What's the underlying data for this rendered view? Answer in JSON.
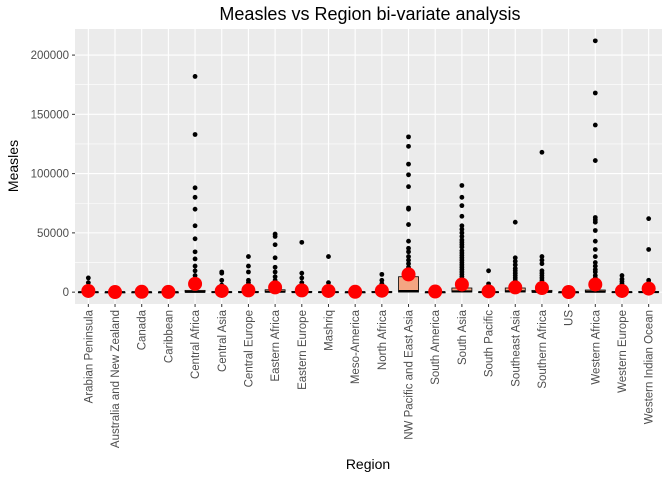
{
  "chart_data": {
    "type": "boxplot",
    "title": "Measles vs Region bi-variate analysis",
    "xlabel": "Region",
    "ylabel": "Measles",
    "ylim": [
      -10000,
      222000
    ],
    "y_ticks": [
      0,
      50000,
      100000,
      150000,
      200000
    ],
    "y_tick_labels": [
      "0",
      "50000",
      "100000",
      "150000",
      "200000"
    ],
    "grid": true,
    "legend": "none",
    "colors": {
      "panel_background": "#EBEBEB",
      "grid_line": "#FFFFFF",
      "box_fill": "#F4A582",
      "box_stroke": "#000000",
      "outlier": "#000000",
      "mean_point": "#FF0000"
    },
    "categories": [
      "Arabian Peninsula",
      "Australia and New Zealand",
      "Canada",
      "Caribbean",
      "Central Africa",
      "Central Asia",
      "Central Europe",
      "Eastern Africa",
      "Eastern Europe",
      "Mashriq",
      "Meso-America",
      "North Africa",
      "NW Pacific and East Asia",
      "South America",
      "South Asia",
      "South Pacific",
      "Southeast Asia",
      "Southern Africa",
      "US",
      "Western Africa",
      "Western Europe",
      "Western Indian Ocean"
    ],
    "boxes": [
      {
        "q1": 0,
        "median": 0,
        "q3": 200
      },
      {
        "q1": 0,
        "median": 0,
        "q3": 50
      },
      {
        "q1": 0,
        "median": 0,
        "q3": 100
      },
      {
        "q1": 0,
        "median": 0,
        "q3": 50
      },
      {
        "q1": 0,
        "median": 200,
        "q3": 1500
      },
      {
        "q1": 0,
        "median": 50,
        "q3": 400
      },
      {
        "q1": 0,
        "median": 50,
        "q3": 500
      },
      {
        "q1": 0,
        "median": 300,
        "q3": 2000
      },
      {
        "q1": 0,
        "median": 50,
        "q3": 600
      },
      {
        "q1": 0,
        "median": 50,
        "q3": 300
      },
      {
        "q1": 0,
        "median": 0,
        "q3": 100
      },
      {
        "q1": 0,
        "median": 50,
        "q3": 500
      },
      {
        "q1": 50,
        "median": 1000,
        "q3": 13000
      },
      {
        "q1": 0,
        "median": 0,
        "q3": 100
      },
      {
        "q1": 100,
        "median": 700,
        "q3": 3500
      },
      {
        "q1": 0,
        "median": 50,
        "q3": 300
      },
      {
        "q1": 100,
        "median": 800,
        "q3": 3500
      },
      {
        "q1": 0,
        "median": 200,
        "q3": 1500
      },
      {
        "q1": 0,
        "median": 0,
        "q3": 100
      },
      {
        "q1": 0,
        "median": 300,
        "q3": 1800
      },
      {
        "q1": 0,
        "median": 50,
        "q3": 300
      },
      {
        "q1": 0,
        "median": 50,
        "q3": 500
      }
    ],
    "means": [
      1000,
      100,
      300,
      200,
      7000,
      1000,
      1500,
      4000,
      1500,
      1000,
      300,
      1200,
      15000,
      500,
      6500,
      700,
      4000,
      3500,
      100,
      6500,
      1000,
      3000
    ],
    "outliers": [
      [
        12000,
        8000,
        5000,
        3000,
        2000
      ],
      [],
      [],
      [],
      [
        182000,
        133000,
        88000,
        80000,
        70000,
        56000,
        45000,
        34000,
        28000,
        22000,
        18000,
        14000,
        10000,
        7000,
        5000
      ],
      [
        17000,
        16000,
        10000,
        6000,
        4000
      ],
      [
        30000,
        22000,
        17000,
        10000,
        8000,
        6000,
        5000
      ],
      [
        49000,
        47000,
        40000,
        29000,
        21000,
        17000,
        13000,
        10000,
        8000,
        6000
      ],
      [
        42000,
        16000,
        12000,
        8000,
        5000,
        3000
      ],
      [
        30000,
        8000,
        5000,
        3000
      ],
      [],
      [
        15000,
        10000,
        7000,
        4000,
        2500
      ],
      [
        131000,
        123000,
        108000,
        99000,
        89000,
        71000,
        70000,
        57000,
        43000,
        37000,
        34000,
        30000,
        27000,
        24000,
        21000,
        18000
      ],
      [],
      [
        90000,
        80000,
        73000,
        64000,
        56000,
        53000,
        50000,
        47000,
        44000,
        42000,
        40000,
        38000,
        35000,
        33000,
        31000,
        29000,
        27000,
        25000,
        23000,
        21000,
        19000,
        17000,
        15000,
        13000,
        11000,
        9000
      ],
      [
        18000,
        7000,
        4000
      ],
      [
        59000,
        29000,
        26000,
        23000,
        20000,
        18000,
        16000,
        14000,
        12000,
        10000,
        8000,
        7000
      ],
      [
        118000,
        30000,
        27000,
        24000,
        18000,
        16000,
        14000,
        12000,
        10000,
        8000
      ],
      [],
      [
        212000,
        168000,
        141000,
        111000,
        63000,
        61000,
        59000,
        52000,
        43000,
        36000,
        30000,
        25000,
        22000,
        19000,
        17000,
        14000,
        12000,
        10000,
        8000
      ],
      [
        14000,
        11000,
        9000,
        7000,
        5000,
        3000
      ],
      [
        62000,
        36000,
        10000,
        8000,
        6000
      ]
    ]
  }
}
